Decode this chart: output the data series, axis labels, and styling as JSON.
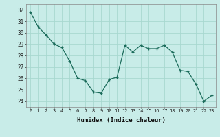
{
  "x": [
    0,
    1,
    2,
    3,
    4,
    5,
    6,
    7,
    8,
    9,
    10,
    11,
    12,
    13,
    14,
    15,
    16,
    17,
    18,
    19,
    20,
    21,
    22,
    23
  ],
  "y": [
    31.8,
    30.5,
    29.8,
    29.0,
    28.7,
    27.5,
    26.0,
    25.8,
    24.8,
    24.7,
    25.9,
    26.1,
    28.9,
    28.3,
    28.9,
    28.6,
    28.6,
    28.9,
    28.3,
    26.7,
    26.6,
    25.5,
    24.0,
    24.5
  ],
  "line_color": "#1a6b5a",
  "marker_color": "#1a6b5a",
  "bg_color": "#c8ece8",
  "grid_color": "#a8d8d0",
  "xlabel": "Humidex (Indice chaleur)",
  "ylim": [
    23.5,
    32.5
  ],
  "xlim": [
    -0.5,
    23.5
  ],
  "yticks": [
    24,
    25,
    26,
    27,
    28,
    29,
    30,
    31,
    32
  ],
  "xticks": [
    0,
    1,
    2,
    3,
    4,
    5,
    6,
    7,
    8,
    9,
    10,
    11,
    12,
    13,
    14,
    15,
    16,
    17,
    18,
    19,
    20,
    21,
    22,
    23
  ]
}
